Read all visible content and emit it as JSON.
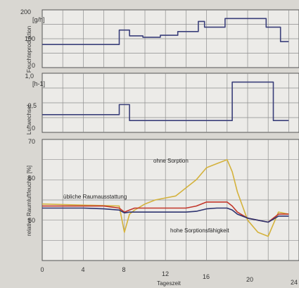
{
  "chart_data": [
    {
      "type": "line",
      "ylabel": "Feuchteproduktion",
      "unit": "[g/h]",
      "ylim": [
        0,
        200
      ],
      "yticks": [
        "0",
        "100",
        "200"
      ],
      "x": [
        0,
        7.5,
        7.5,
        8.5,
        8.5,
        9.8,
        9.8,
        11.5,
        11.5,
        13.2,
        13.2,
        15.2,
        15.2,
        15.8,
        15.8,
        17.8,
        17.8,
        20,
        20,
        21.8,
        21.8,
        23.2,
        23.2,
        24
      ],
      "series": [
        {
          "color": "#3a3f7a",
          "values": [
            80,
            80,
            130,
            130,
            110,
            110,
            105,
            105,
            112,
            112,
            125,
            125,
            160,
            160,
            140,
            140,
            170,
            170,
            170,
            170,
            140,
            140,
            90,
            90
          ]
        }
      ]
    },
    {
      "type": "line",
      "ylabel": "Luftwechsel",
      "unit": "[h-1]",
      "ylim": [
        0,
        1.0
      ],
      "yticks": [
        "0",
        "0,5",
        "1,0"
      ],
      "x": [
        0,
        7.5,
        7.5,
        8.5,
        8.5,
        18.5,
        18.5,
        22.5,
        22.5,
        24
      ],
      "series": [
        {
          "color": "#3a3f7a",
          "values": [
            0.3,
            0.3,
            0.47,
            0.47,
            0.2,
            0.2,
            0.85,
            0.85,
            0.2,
            0.2
          ]
        }
      ]
    },
    {
      "type": "line",
      "xlabel": "Tageszeit",
      "ylabel": "relative Raumluftfeuchte [%]",
      "ylim": [
        40,
        70
      ],
      "xlim": [
        0,
        24
      ],
      "yticks": [
        "50",
        "60",
        "70"
      ],
      "xticks": [
        "0",
        "4",
        "8",
        "12",
        "16",
        "20",
        "24"
      ],
      "annotations": [
        "ohne Sorption",
        "übliche Raumausstattung",
        "hohe Sorptionsfähigkeit"
      ],
      "series": [
        {
          "color": "#d4b23c",
          "x": [
            0,
            7.5,
            8,
            8.5,
            9,
            10,
            11,
            12,
            13,
            14,
            15,
            16,
            17,
            18,
            18.5,
            19,
            20,
            21,
            22,
            23,
            24
          ],
          "values": [
            54,
            53.5,
            47,
            51.5,
            52.5,
            54,
            55,
            55.5,
            56,
            58,
            60,
            63,
            64,
            65,
            62,
            57,
            50,
            47,
            46,
            52,
            51.5
          ]
        },
        {
          "color": "#c2362a",
          "x": [
            0,
            2,
            4,
            6,
            7.5,
            8,
            8.5,
            9,
            10,
            12,
            14,
            15,
            16,
            17,
            18,
            18.5,
            19,
            20,
            21,
            22,
            23,
            24
          ],
          "values": [
            53.5,
            53.5,
            53.5,
            53.5,
            53,
            52,
            52.5,
            53,
            53,
            53,
            53,
            53.5,
            54.5,
            54.5,
            54.5,
            53.5,
            52,
            50.5,
            50,
            49.5,
            51.5,
            51.5
          ]
        },
        {
          "color": "#2e3470",
          "x": [
            0,
            2,
            4,
            6,
            7.5,
            8,
            8.5,
            9,
            10,
            12,
            14,
            15,
            16,
            17,
            18,
            18.5,
            19,
            20,
            21,
            22,
            23,
            24
          ],
          "values": [
            53,
            53,
            53,
            52.8,
            52.5,
            51.8,
            52,
            52,
            52,
            52,
            52,
            52.2,
            52.8,
            53,
            53,
            52.5,
            51.5,
            50.5,
            50,
            49.5,
            51,
            51
          ]
        }
      ]
    }
  ]
}
